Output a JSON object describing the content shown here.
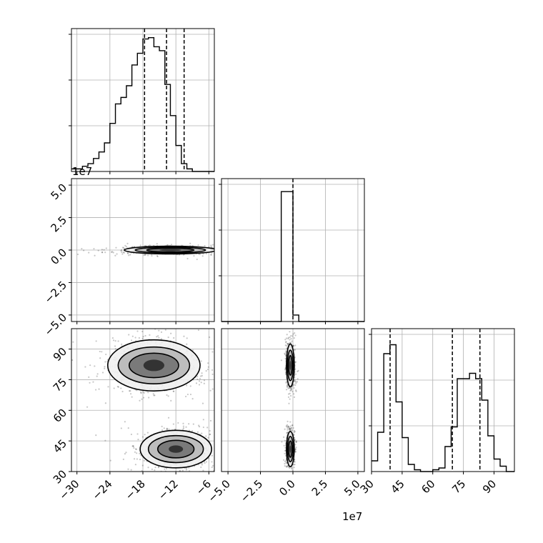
{
  "chart_data": {
    "type": "corner-plot",
    "grid": true,
    "offset_labels": [
      "1e7",
      "1e7"
    ],
    "parameters": [
      {
        "range": [
          -31,
          -5
        ],
        "ticks": [
          -30,
          -24,
          -18,
          -12,
          -6
        ],
        "tick_labels": [
          "−30",
          "−24",
          "−18",
          "−12",
          "−6"
        ]
      },
      {
        "range": [
          -5.5,
          5.5
        ],
        "ticks": [
          -5.0,
          -2.5,
          0.0,
          2.5,
          5.0
        ],
        "tick_labels": [
          "−5.0",
          "−2.5",
          "0.0",
          "2.5",
          "5.0"
        ]
      },
      {
        "range": [
          30,
          100
        ],
        "ticks": [
          30,
          45,
          60,
          75,
          90
        ],
        "tick_labels": [
          "30",
          "45",
          "60",
          "75",
          "90"
        ]
      }
    ],
    "histograms": [
      {
        "param": 0,
        "bin_edges": [
          -31,
          -30,
          -29,
          -28,
          -27,
          -26,
          -25,
          -24,
          -23,
          -22,
          -21,
          -20,
          -19,
          -18,
          -17,
          -16,
          -15,
          -14,
          -13,
          -12,
          -11,
          -10,
          -9,
          -8,
          -7,
          -6,
          -5
        ],
        "counts": [
          2,
          2,
          4,
          6,
          10,
          15,
          22,
          37,
          52,
          57,
          66,
          82,
          91,
          102,
          103,
          96,
          93,
          67,
          43,
          20,
          6,
          2,
          0,
          0,
          0,
          0
        ],
        "quantiles": [
          -17.7,
          -13.7,
          -10.5
        ],
        "ymax": 110
      },
      {
        "param": 1,
        "bin_edges": [
          -5.5,
          -0.9,
          -0.45,
          0.0,
          0.45,
          5.5
        ],
        "counts": [
          0,
          100,
          100,
          5,
          0
        ],
        "quantiles": [
          0.0
        ],
        "ymax": 110
      },
      {
        "param": 2,
        "bin_edges": [
          30,
          33,
          36,
          39,
          42,
          45,
          48,
          51,
          54,
          57,
          60,
          63,
          66,
          69,
          72,
          75,
          78,
          81,
          84,
          87,
          90,
          93,
          96,
          99,
          100
        ],
        "counts": [
          6,
          22,
          66,
          71,
          39,
          19,
          4,
          1,
          0,
          0,
          1,
          2,
          14,
          25,
          52,
          52,
          55,
          52,
          40,
          20,
          7,
          3,
          0,
          0
        ],
        "quantiles": [
          39.1,
          69.6,
          83.1
        ],
        "ymax": 80
      }
    ],
    "contours_2d": [
      {
        "x_param": 0,
        "y_param": 1,
        "modes": [
          {
            "cx": -13.0,
            "cy": 0.0,
            "rx": [
              8.4,
              6.4,
              4.3,
              2.0
            ],
            "ry": [
              0.3,
              0.22,
              0.15,
              0.08
            ]
          }
        ]
      },
      {
        "x_param": 0,
        "y_param": 2,
        "modes": [
          {
            "cx": -16.0,
            "cy": 82.0,
            "rx": [
              8.4,
              6.5,
              4.5,
              1.9
            ],
            "ry": [
              12.5,
              9.0,
              6.0,
              2.8
            ]
          },
          {
            "cx": -12.0,
            "cy": 41.0,
            "rx": [
              6.5,
              5.0,
              3.3,
              1.3
            ],
            "ry": [
              9.2,
              6.6,
              4.3,
              1.8
            ]
          }
        ]
      },
      {
        "x_param": 1,
        "y_param": 2,
        "modes": [
          {
            "cx": -0.2,
            "cy": 82.0,
            "rx": [
              0.3,
              0.22,
              0.14,
              0.07
            ],
            "ry": [
              10.5,
              7.5,
              4.8,
              2.2
            ]
          },
          {
            "cx": -0.2,
            "cy": 41.0,
            "rx": [
              0.3,
              0.22,
              0.14,
              0.07
            ],
            "ry": [
              8.6,
              6.2,
              4.0,
              1.8
            ]
          }
        ]
      }
    ]
  }
}
